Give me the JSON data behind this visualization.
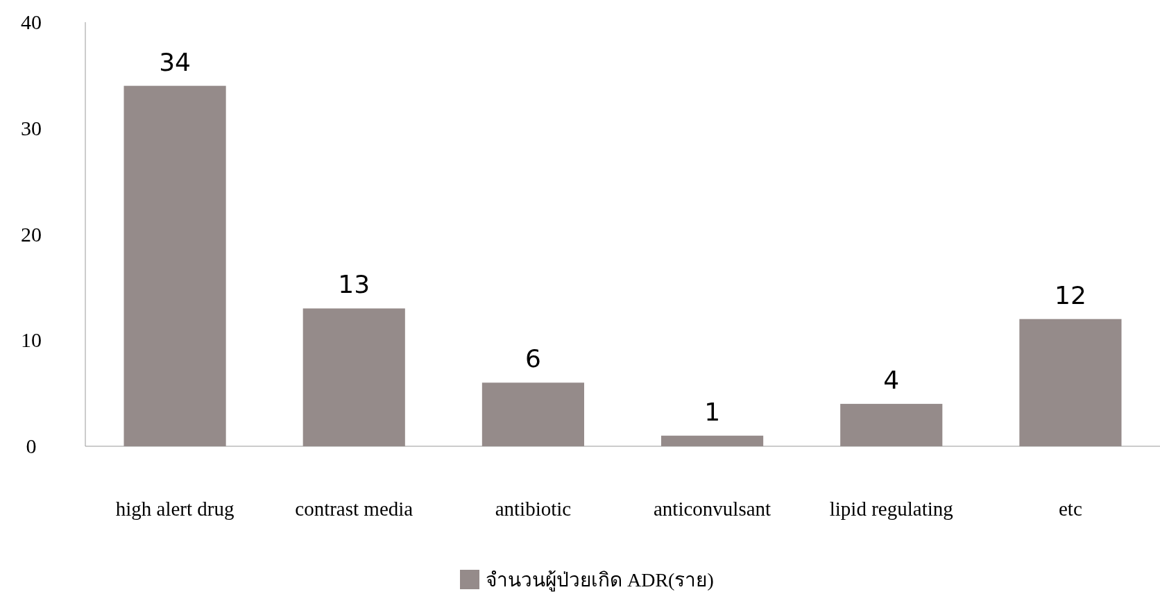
{
  "chart_data": {
    "type": "bar",
    "categories": [
      "high alert drug",
      "contrast media",
      "antibiotic",
      "anticonvulsant",
      "lipid regulating",
      "etc"
    ],
    "series": [
      {
        "name": "จำนวนผู้ป่วยเกิด ADR(ราย)",
        "color": "#958b8a",
        "values": [
          34,
          13,
          6,
          1,
          4,
          12
        ]
      }
    ],
    "ylim": [
      0,
      40
    ],
    "yticks": [
      0,
      10,
      20,
      30,
      40
    ],
    "data_labels": true,
    "legend": "bottom",
    "grid": false
  }
}
